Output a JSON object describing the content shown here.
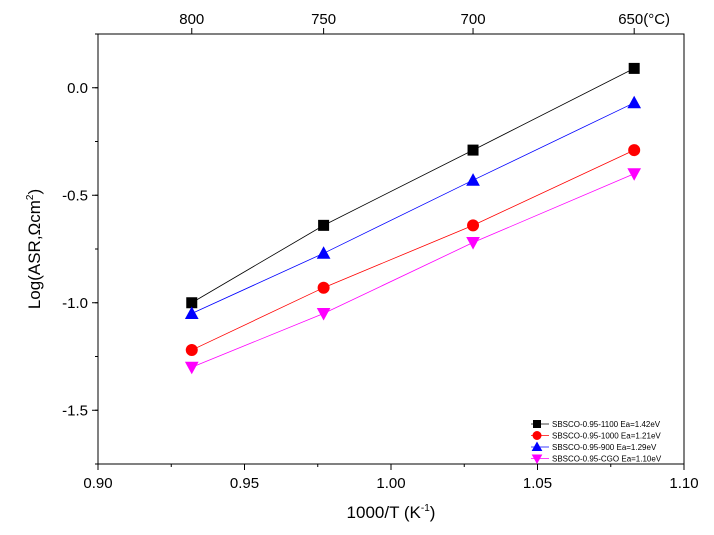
{
  "chart_data": {
    "type": "scatter",
    "title": "",
    "xlabel": "1000/T (K",
    "xlabel_sup": "-1",
    "xlabel_close": ")",
    "ylabel": "Log(ASR,",
    "ylabel_unit": "Ωcm",
    "ylabel_sup": "2",
    "ylabel_close": ")",
    "xlim": [
      0.9,
      1.1
    ],
    "ylim": [
      -1.75,
      0.25
    ],
    "x_ticks": [
      "0.90",
      "0.95",
      "1.00",
      "1.05",
      "1.10"
    ],
    "x_tick_values": [
      0.9,
      0.95,
      1.0,
      1.05,
      1.1
    ],
    "y_ticks": [
      "0.0",
      "-0.5",
      "-1.0",
      "-1.5"
    ],
    "y_tick_values": [
      0.0,
      -0.5,
      -1.0,
      -1.5
    ],
    "top_axis": {
      "labels": [
        "800",
        "750",
        "700",
        "650(°C)"
      ],
      "values": [
        0.932,
        0.977,
        1.028,
        1.083
      ]
    },
    "grid": false,
    "legend_position": "bottom-right",
    "series": [
      {
        "name": "SBSCO-0.95-1100 Ea=1.42eV",
        "marker": "square",
        "color": "#000000",
        "x": [
          0.932,
          0.977,
          1.028,
          1.083
        ],
        "y": [
          -1.0,
          -0.64,
          -0.29,
          0.09
        ]
      },
      {
        "name": "SBSCO-0.95-1000 Ea=1.21eV",
        "marker": "circle",
        "color": "#ff0000",
        "x": [
          0.932,
          0.977,
          1.028,
          1.083
        ],
        "y": [
          -1.22,
          -0.93,
          -0.64,
          -0.29
        ]
      },
      {
        "name": "SBSCO-0.95-900 Ea=1.29eV",
        "marker": "triangle-up",
        "color": "#0000ff",
        "x": [
          0.932,
          0.977,
          1.028,
          1.083
        ],
        "y": [
          -1.05,
          -0.77,
          -0.43,
          -0.07
        ]
      },
      {
        "name": "SBSCO-0.95-CGO Ea=1.10eV",
        "marker": "triangle-down",
        "color": "#ff00ff",
        "x": [
          0.932,
          0.977,
          1.028,
          1.083
        ],
        "y": [
          -1.3,
          -1.05,
          -0.72,
          -0.4
        ]
      }
    ]
  }
}
